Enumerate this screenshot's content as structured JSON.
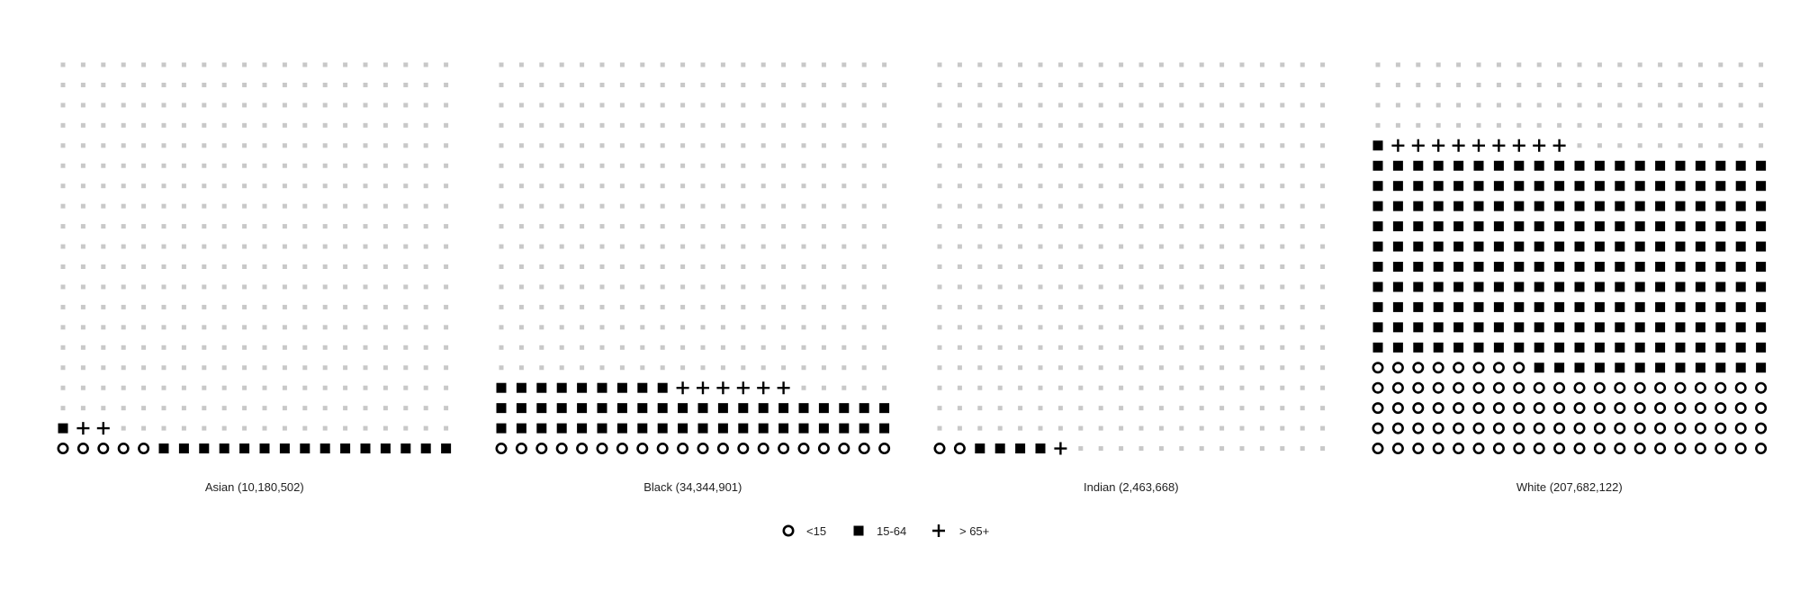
{
  "chart_data": {
    "type": "waffle",
    "grid": {
      "rows": 20,
      "cols": 20
    },
    "colors": {
      "filled": "#000000",
      "empty": "#c8c8c8",
      "background": "#ffffff"
    },
    "legend": {
      "placement": "bottom-center",
      "items": [
        {
          "key": "under15",
          "label": "<15",
          "icon": "circle-outline-icon"
        },
        {
          "key": "age15to64",
          "label": "15-64",
          "icon": "filled-square-icon"
        },
        {
          "key": "over65",
          "label": "> 65+",
          "icon": "plus-icon"
        }
      ]
    },
    "panels": [
      {
        "label": "Asian (10,180,502)",
        "counts": {
          "under15": 5,
          "age15to64": 16,
          "over65": 2
        }
      },
      {
        "label": "Black (34,344,901)",
        "counts": {
          "under15": 20,
          "age15to64": 49,
          "over65": 6
        }
      },
      {
        "label": "Indian (2,463,668)",
        "counts": {
          "under15": 2,
          "age15to64": 4,
          "over65": 1
        }
      },
      {
        "label": "White (207,682,122)",
        "counts": {
          "under15": 88,
          "age15to64": 213,
          "over65": 9
        }
      }
    ]
  }
}
